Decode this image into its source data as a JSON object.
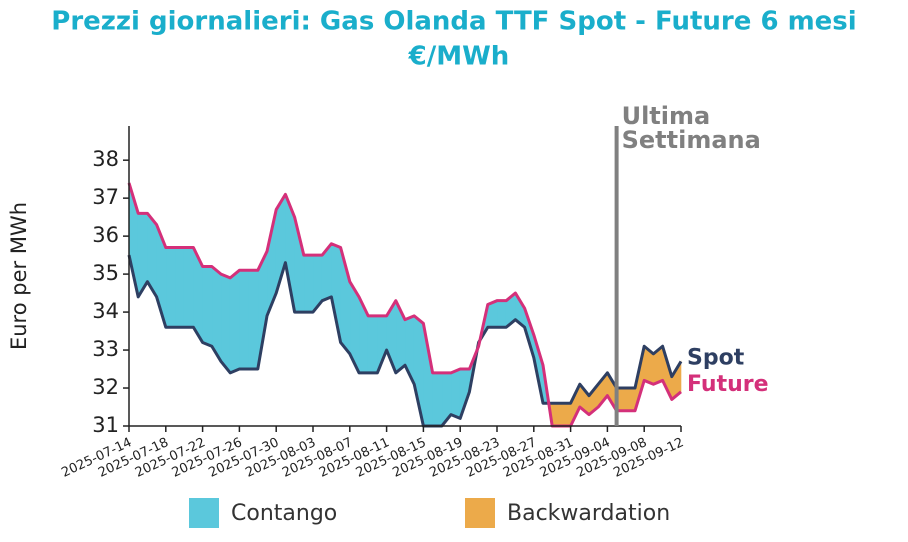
{
  "chart_data": {
    "type": "line",
    "title": "Prezzi giornalieri: Gas Olanda TTF Spot - Future 6 mesi",
    "subtitle": "€/MWh",
    "y_label": "Euro per MWh",
    "x": [
      "2025-07-14",
      "2025-07-15",
      "2025-07-16",
      "2025-07-17",
      "2025-07-18",
      "2025-07-19",
      "2025-07-20",
      "2025-07-21",
      "2025-07-22",
      "2025-07-23",
      "2025-07-24",
      "2025-07-25",
      "2025-07-26",
      "2025-07-27",
      "2025-07-28",
      "2025-07-29",
      "2025-07-30",
      "2025-07-31",
      "2025-08-01",
      "2025-08-02",
      "2025-08-03",
      "2025-08-04",
      "2025-08-05",
      "2025-08-06",
      "2025-08-07",
      "2025-08-08",
      "2025-08-09",
      "2025-08-10",
      "2025-08-11",
      "2025-08-12",
      "2025-08-13",
      "2025-08-14",
      "2025-08-15",
      "2025-08-16",
      "2025-08-17",
      "2025-08-18",
      "2025-08-19",
      "2025-08-20",
      "2025-08-21",
      "2025-08-22",
      "2025-08-23",
      "2025-08-24",
      "2025-08-25",
      "2025-08-26",
      "2025-08-27",
      "2025-08-28",
      "2025-08-29",
      "2025-08-30",
      "2025-08-31",
      "2025-09-01",
      "2025-09-02",
      "2025-09-03",
      "2025-09-04",
      "2025-09-05",
      "2025-09-06",
      "2025-09-07",
      "2025-09-08",
      "2025-09-09",
      "2025-09-10",
      "2025-09-11",
      "2025-09-12"
    ],
    "series": [
      {
        "name": "Spot",
        "color": "#2e3f62",
        "values": [
          35.5,
          34.4,
          34.8,
          34.4,
          33.6,
          33.6,
          33.6,
          33.6,
          33.2,
          33.1,
          32.7,
          32.4,
          32.5,
          32.5,
          32.5,
          33.9,
          34.5,
          35.3,
          34.0,
          34.0,
          34.0,
          34.3,
          34.4,
          33.2,
          32.9,
          32.4,
          32.4,
          32.4,
          33.0,
          32.4,
          32.6,
          32.1,
          31.0,
          31.0,
          31.0,
          31.3,
          31.2,
          31.9,
          33.2,
          33.6,
          33.6,
          33.6,
          33.8,
          33.6,
          32.8,
          31.6,
          31.6,
          31.6,
          31.6,
          32.1,
          31.8,
          32.1,
          32.4,
          32.0,
          32.0,
          32.0,
          33.1,
          32.9,
          33.1,
          32.3,
          32.7
        ]
      },
      {
        "name": "Future",
        "color": "#d4307a",
        "values": [
          37.4,
          36.6,
          36.6,
          36.3,
          35.7,
          35.7,
          35.7,
          35.7,
          35.2,
          35.2,
          35.0,
          34.9,
          35.1,
          35.1,
          35.1,
          35.6,
          36.7,
          37.1,
          36.5,
          35.5,
          35.5,
          35.5,
          35.8,
          35.7,
          34.8,
          34.4,
          33.9,
          33.9,
          33.9,
          34.3,
          33.8,
          33.9,
          33.7,
          32.4,
          32.4,
          32.4,
          32.5,
          32.5,
          33.1,
          34.2,
          34.3,
          34.3,
          34.5,
          34.1,
          33.4,
          32.6,
          31.0,
          31.0,
          31.0,
          31.5,
          31.3,
          31.5,
          31.8,
          31.4,
          31.4,
          31.4,
          32.2,
          32.1,
          32.2,
          31.7,
          31.9
        ]
      }
    ],
    "fills": [
      {
        "name": "Contango",
        "color": "#5bc8dc"
      },
      {
        "name": "Backwardation",
        "color": "#ecaa4a"
      }
    ],
    "annotation": {
      "x": "2025-09-05",
      "lines": [
        "Ultima",
        "Settimana"
      ],
      "color": "#808080"
    },
    "ylim": [
      31,
      38.9
    ],
    "yticks": [
      31,
      32,
      33,
      34,
      35,
      36,
      37,
      38
    ],
    "xlim": [
      "2025-07-14",
      "2025-09-12"
    ],
    "xticks": [
      "2025-07-14",
      "2025-07-18",
      "2025-07-22",
      "2025-07-26",
      "2025-07-30",
      "2025-08-03",
      "2025-08-07",
      "2025-08-11",
      "2025-08-15",
      "2025-08-19",
      "2025-08-23",
      "2025-08-27",
      "2025-08-31",
      "2025-09-04",
      "2025-09-08",
      "2025-09-12"
    ]
  }
}
